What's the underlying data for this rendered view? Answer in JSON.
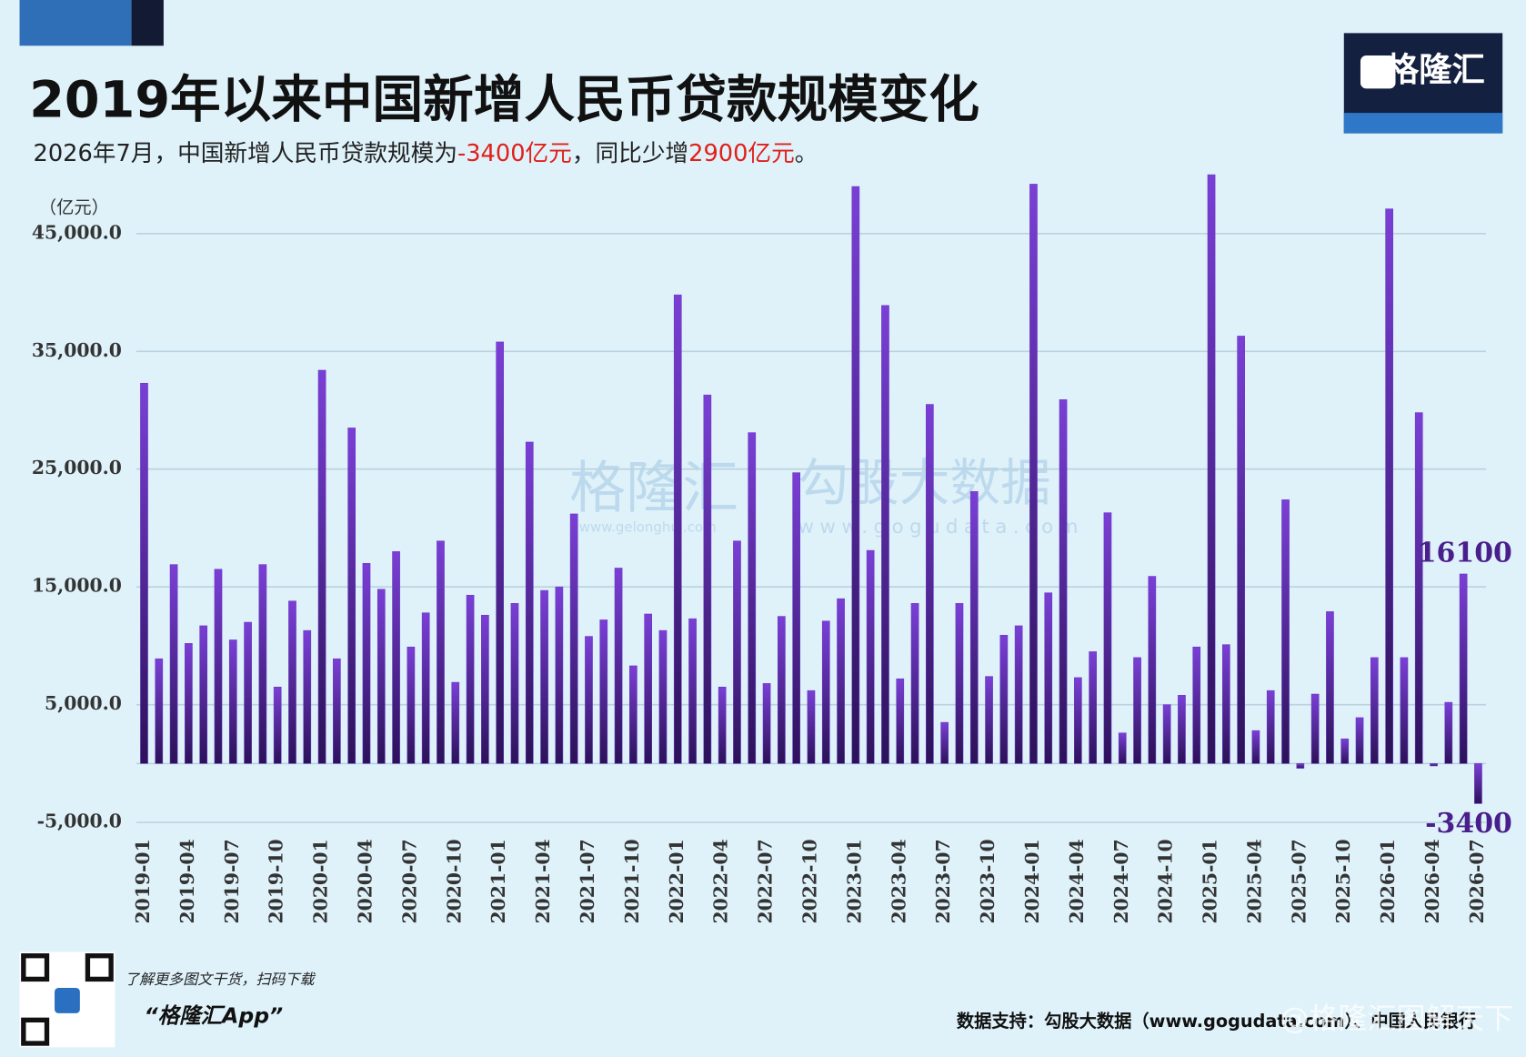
{
  "chart_data": {
    "type": "bar",
    "title": "2019年以来中国新增人民币贷款规模变化",
    "subtitle": [
      {
        "text": "2026年7月，中国新增人民币贷款规模为",
        "color": "#222222"
      },
      {
        "text": "-3400亿元",
        "color": "#e0201b"
      },
      {
        "text": "，同比少增",
        "color": "#222222"
      },
      {
        "text": "2900亿元",
        "color": "#e0201b"
      },
      {
        "text": "。",
        "color": "#222222"
      }
    ],
    "y_unit": "（亿元）",
    "categories": [
      "2019-01",
      null,
      null,
      "2019-04",
      null,
      null,
      "2019-07",
      null,
      null,
      "2019-10",
      null,
      null,
      "2020-01",
      null,
      null,
      "2020-04",
      null,
      null,
      "2020-07",
      null,
      null,
      "2020-10",
      null,
      null,
      "2021-01",
      null,
      null,
      "2021-04",
      null,
      null,
      "2021-07",
      null,
      null,
      "2021-10",
      null,
      null,
      "2022-01",
      null,
      null,
      "2022-04",
      null,
      null,
      "2022-07",
      null,
      null,
      "2022-10",
      null,
      null,
      "2023-01",
      null,
      null,
      "2023-04",
      null,
      null,
      "2023-07",
      null,
      null,
      "2023-10",
      null,
      null,
      "2024-01",
      null,
      null,
      "2024-04",
      null,
      null,
      "2024-07",
      null,
      null,
      "2024-10",
      null,
      null,
      "2025-01",
      null,
      null,
      "2025-04",
      null,
      null,
      "2025-07",
      null,
      null,
      "2025-10",
      null,
      null,
      "2026-01",
      null,
      null,
      "2026-04",
      null,
      null,
      "2026-07"
    ],
    "values": [
      32300,
      8900,
      16900,
      10200,
      11700,
      16500,
      10500,
      12000,
      16900,
      6500,
      13800,
      11300,
      33400,
      8900,
      28500,
      17000,
      14800,
      18000,
      9900,
      12800,
      18900,
      6900,
      14300,
      12600,
      35800,
      13600,
      27300,
      14700,
      15000,
      21200,
      10800,
      12200,
      16600,
      8300,
      12700,
      11300,
      39800,
      12300,
      31300,
      6500,
      18900,
      28100,
      6800,
      12500,
      24700,
      6200,
      12100,
      14000,
      49000,
      18100,
      38900,
      7200,
      13600,
      30500,
      3500,
      13600,
      23100,
      7400,
      10900,
      11700,
      49200,
      14500,
      30900,
      7300,
      9500,
      21300,
      2600,
      9000,
      15900,
      5000,
      5800,
      9900,
      50000,
      10100,
      36300,
      2800,
      6200,
      22400,
      -400,
      5900,
      12900,
      2100,
      3900,
      9000,
      47100,
      9000,
      29800,
      -200,
      5200,
      16100,
      -3400
    ],
    "value_labels": [
      null,
      null,
      null,
      null,
      null,
      null,
      null,
      null,
      null,
      null,
      null,
      null,
      null,
      null,
      null,
      null,
      null,
      null,
      null,
      null,
      null,
      null,
      null,
      null,
      null,
      null,
      null,
      null,
      null,
      null,
      null,
      null,
      null,
      null,
      null,
      null,
      null,
      null,
      null,
      null,
      null,
      null,
      null,
      null,
      null,
      null,
      null,
      null,
      null,
      null,
      null,
      null,
      null,
      null,
      null,
      null,
      null,
      null,
      null,
      null,
      null,
      null,
      null,
      null,
      null,
      null,
      null,
      null,
      null,
      null,
      null,
      null,
      null,
      null,
      null,
      null,
      null,
      null,
      null,
      null,
      null,
      null,
      null,
      null,
      null,
      null,
      null,
      null,
      null,
      "16100",
      "-3400"
    ],
    "color": "#6b35c4",
    "ylim": [
      -5000,
      50000
    ],
    "yticks": [
      {
        "value": -5000,
        "label": "-5,000.0"
      },
      {
        "value": 5000,
        "label": "5,000.0"
      },
      {
        "value": 15000,
        "label": "15,000.0"
      },
      {
        "value": 25000,
        "label": "25,000.0"
      },
      {
        "value": 35000,
        "label": "35,000.0"
      },
      {
        "value": 45000,
        "label": "45,000.0"
      }
    ],
    "grid": true
  },
  "brand": {
    "logo": "格隆汇",
    "watermark_1": "格隆汇",
    "watermark_1_url": "www.gelonghui.com",
    "watermark_2": "勾股大数据",
    "watermark_2_url": "www.gogudata.com",
    "weibo": "@格隆汇图解天下"
  },
  "footer": {
    "qr_text": "了解更多图文干货，扫码下载",
    "app": "“格隆汇App”",
    "source": "数据支持：勾股大数据（www.gogudata.com）、中国人民银行"
  }
}
